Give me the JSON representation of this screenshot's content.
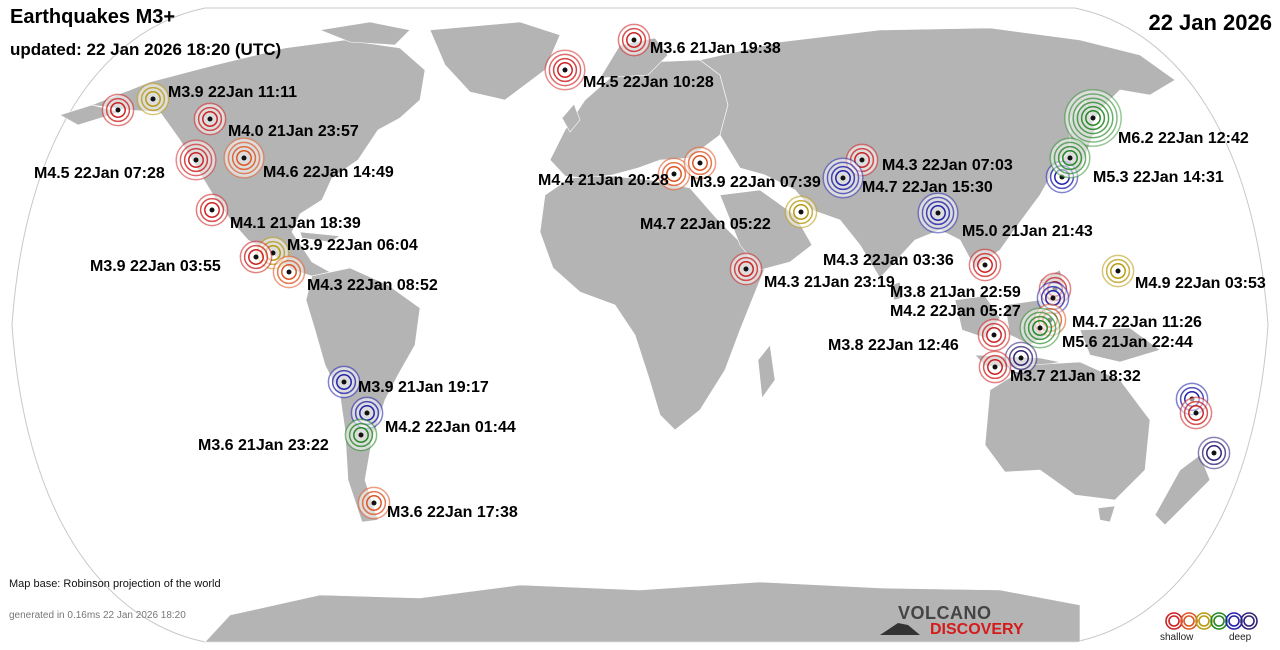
{
  "header": {
    "title": "Earthquakes M3+",
    "updated": "updated: 22 Jan 2026 18:20 (UTC)",
    "date": "22 Jan 2026"
  },
  "footer": {
    "map_base": "Map base: Robinson projection of the world",
    "generated": "generated in 0.16ms 22 Jan 2026 18:20"
  },
  "logo": {
    "line1": "VOLCANO",
    "line2": "DISCOVERY"
  },
  "legend": {
    "shallow": "shallow",
    "deep": "deep"
  },
  "depth_colors": [
    "#cc2222",
    "#dd5522",
    "#b89a10",
    "#228822",
    "#2222aa",
    "#332277"
  ],
  "earthquakes": [
    {
      "label": "M3.6 21Jan 19:38",
      "depth": 0
    },
    {
      "label": "M4.5 22Jan 10:28",
      "depth": 0
    },
    {
      "label": "M3.9 22Jan 11:11",
      "depth": 2
    },
    {
      "label": "",
      "depth": 0
    },
    {
      "label": "M4.0 21Jan 23:57",
      "depth": 0
    },
    {
      "label": "M4.5 22Jan 07:28",
      "depth": 0
    },
    {
      "label": "M4.6 22Jan 14:49",
      "depth": 1
    },
    {
      "label": "M4.1 21Jan 18:39",
      "depth": 0
    },
    {
      "label": "M3.9 22Jan 06:04",
      "depth": 2
    },
    {
      "label": "M3.9 22Jan 03:55",
      "depth": 0
    },
    {
      "label": "M4.3 22Jan 08:52",
      "depth": 1
    },
    {
      "label": "M3.9 21Jan 19:17",
      "depth": 4
    },
    {
      "label": "M4.2 22Jan 01:44",
      "depth": 4
    },
    {
      "label": "M3.6 21Jan 23:22",
      "depth": 3
    },
    {
      "label": "M3.6 22Jan 17:38",
      "depth": 1
    },
    {
      "label": "M4.4 21Jan 20:28",
      "depth": 1
    },
    {
      "label": "M3.9 22Jan 07:39",
      "depth": 1
    },
    {
      "label": "M4.3 22Jan 07:03",
      "depth": 0
    },
    {
      "label": "M4.7 22Jan 15:30",
      "depth": 4
    },
    {
      "label": "M4.7 22Jan 05:22",
      "depth": 2
    },
    {
      "label": "M4.3 21Jan 23:19",
      "depth": 0
    },
    {
      "label": "M5.0 21Jan 21:43",
      "depth": 4
    },
    {
      "label": "M6.2 22Jan 12:42",
      "depth": 3
    },
    {
      "label": "M5.3 22Jan 14:31",
      "depth": 4
    },
    {
      "label": "",
      "depth": 3
    },
    {
      "label": "M4.3 22Jan 03:36",
      "depth": 0
    },
    {
      "label": "M4.9 22Jan 03:53",
      "depth": 2
    },
    {
      "label": "M3.8 21Jan 22:59",
      "depth": 0
    },
    {
      "label": "M4.2 22Jan 05:27",
      "depth": 4
    },
    {
      "label": "M4.7 22Jan 11:26",
      "depth": 1
    },
    {
      "label": "M5.6 21Jan 22:44",
      "depth": 3
    },
    {
      "label": "M3.8 22Jan 12:46",
      "depth": 0
    },
    {
      "label": "M3.7 21Jan 18:32",
      "depth": 5
    },
    {
      "label": "",
      "depth": 0
    },
    {
      "label": "",
      "depth": 4
    },
    {
      "label": "",
      "depth": 0
    },
    {
      "label": "",
      "depth": 5
    }
  ]
}
